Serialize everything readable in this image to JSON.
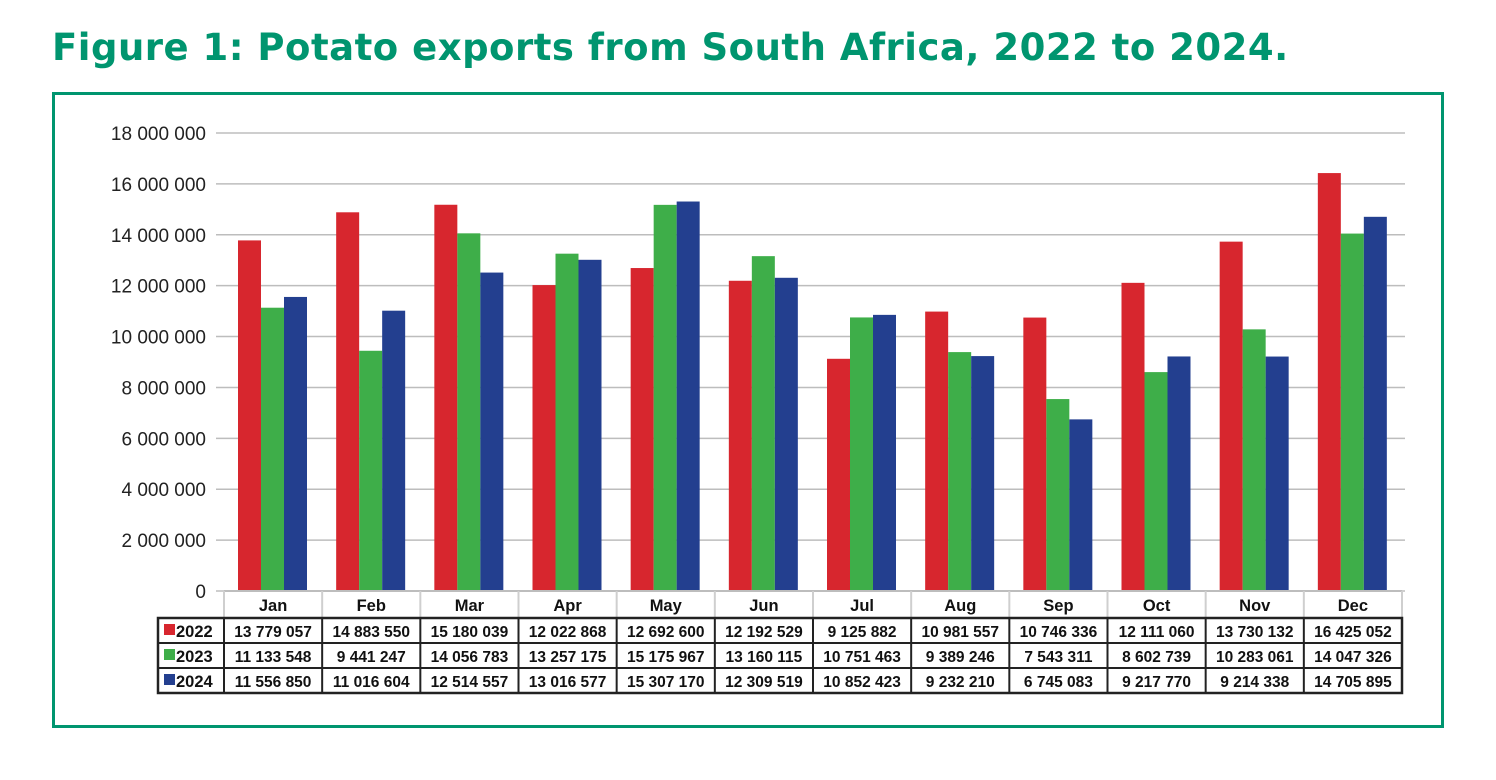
{
  "title": "Figure 1: Potato exports from South Africa, 2022 to 2024.",
  "chart_data": {
    "type": "bar",
    "title": "Figure 1: Potato exports from South Africa, 2022 to 2024.",
    "xlabel": "",
    "ylabel": "",
    "ylim": [
      0,
      18000000
    ],
    "yticks": [
      "0",
      "2 000 000",
      "4 000 000",
      "6 000 000",
      "8 000 000",
      "10 000 000",
      "12 000 000",
      "14 000 000",
      "16 000 000",
      "18 000 000"
    ],
    "grid": true,
    "legend": "data-table-below",
    "categories": [
      "Jan",
      "Feb",
      "Mar",
      "Apr",
      "May",
      "Jun",
      "Jul",
      "Aug",
      "Sep",
      "Oct",
      "Nov",
      "Dec"
    ],
    "series": [
      {
        "name": "2022",
        "color": "#d7262e",
        "values": [
          13779057,
          14883550,
          15180039,
          12022868,
          12692600,
          12192529,
          9125882,
          10981557,
          10746336,
          12111060,
          13730132,
          16425052
        ],
        "labels": [
          "13 779 057",
          "14 883 550",
          "15 180 039",
          "12 022 868",
          "12 692 600",
          "12 192 529",
          "9 125 882",
          "10 981 557",
          "10 746 336",
          "12 111 060",
          "13 730 132",
          "16 425 052"
        ]
      },
      {
        "name": "2023",
        "color": "#3eae49",
        "values": [
          11133548,
          9441247,
          14056783,
          13257175,
          15175967,
          13160115,
          10751463,
          9389246,
          7543311,
          8602739,
          10283061,
          14047326
        ],
        "labels": [
          "11 133 548",
          "9 441 247",
          "14 056 783",
          "13 257 175",
          "15 175 967",
          "13 160 115",
          "10 751 463",
          "9 389 246",
          "7 543 311",
          "8 602 739",
          "10 283 061",
          "14 047 326"
        ]
      },
      {
        "name": "2024",
        "color": "#233f8f",
        "values": [
          11556850,
          11016604,
          12514557,
          13016577,
          15307170,
          12309519,
          10852423,
          9232210,
          6745083,
          9217770,
          9214338,
          14705895
        ],
        "labels": [
          "11 556 850",
          "11 016 604",
          "12 514 557",
          "13 016 577",
          "15 307 170",
          "12 309 519",
          "10 852 423",
          "9 232 210",
          "6 745 083",
          "9 217 770",
          "9 214 338",
          "14 705 895"
        ]
      }
    ]
  }
}
